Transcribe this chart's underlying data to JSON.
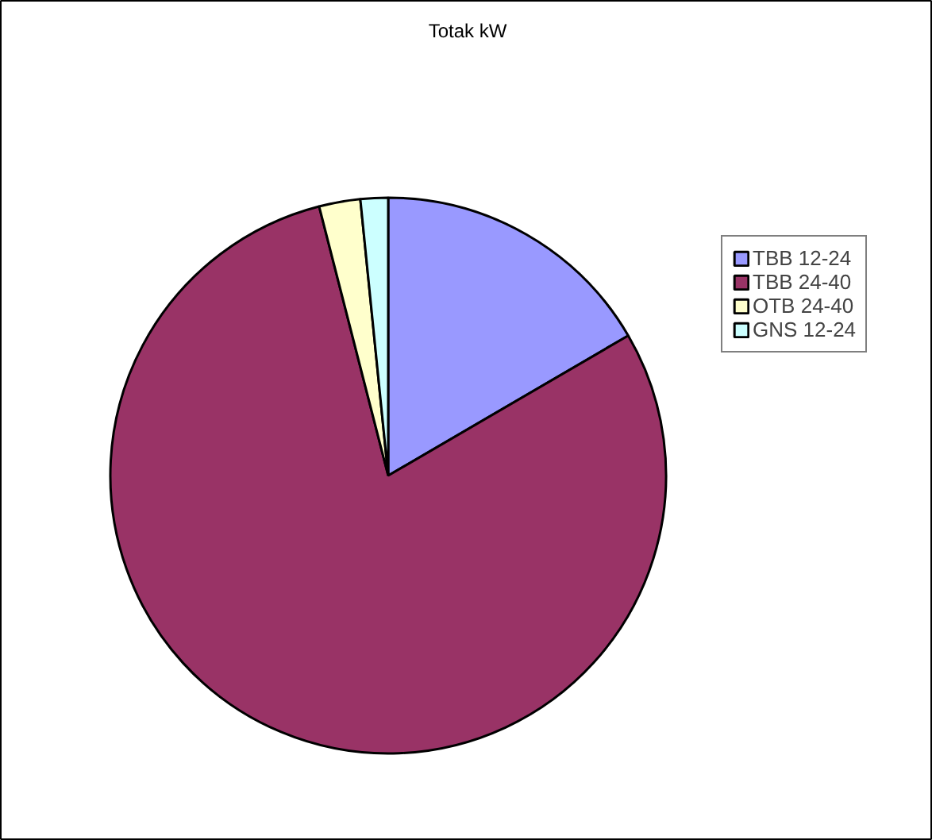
{
  "chart_data": {
    "type": "pie",
    "title": "Totak kW",
    "categories": [
      "TBB 12-24",
      "TBB 24-40",
      "OTB 24-40",
      "GNS 12-24"
    ],
    "values": [
      16.6,
      79.4,
      2.4,
      1.6
    ],
    "colors": [
      "#9999ff",
      "#993366",
      "#ffffcc",
      "#ccffff"
    ],
    "legend": "right"
  }
}
